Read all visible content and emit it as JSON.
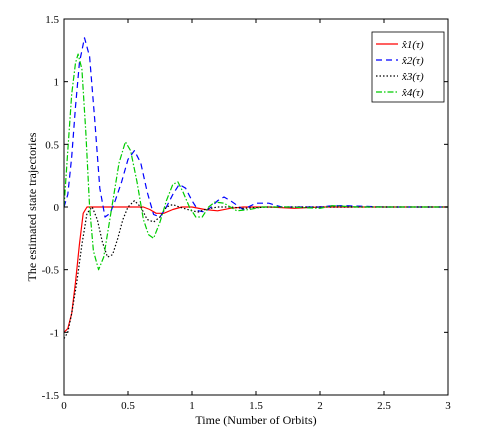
{
  "chart_data": {
    "type": "line",
    "title": "",
    "xlabel": "Time (Number of Orbits)",
    "ylabel": "The estimated state trajectories",
    "xlim": [
      0,
      3
    ],
    "ylim": [
      -1.5,
      1.5
    ],
    "xticks": [
      "0",
      "0.5",
      "1",
      "1.5",
      "2",
      "2.5",
      "3"
    ],
    "yticks": [
      "-1.5",
      "-1",
      "-0.5",
      "0",
      "0.5",
      "1",
      "1.5"
    ],
    "grid": false,
    "legend_position": "top-right",
    "series": [
      {
        "name": "x̂1(τ)",
        "color": "#ff0000",
        "dash": "solid",
        "points": [
          [
            0.0,
            -1.0
          ],
          [
            0.03,
            -0.97
          ],
          [
            0.06,
            -0.85
          ],
          [
            0.09,
            -0.6
          ],
          [
            0.12,
            -0.3
          ],
          [
            0.15,
            -0.05
          ],
          [
            0.18,
            0.0
          ],
          [
            0.25,
            0.0
          ],
          [
            0.35,
            0.0
          ],
          [
            0.45,
            0.0
          ],
          [
            0.55,
            0.0
          ],
          [
            0.62,
            0.0
          ],
          [
            0.67,
            -0.02
          ],
          [
            0.72,
            -0.05
          ],
          [
            0.78,
            -0.05
          ],
          [
            0.85,
            -0.02
          ],
          [
            0.92,
            0.0
          ],
          [
            1.0,
            0.0
          ],
          [
            1.1,
            -0.02
          ],
          [
            1.2,
            -0.03
          ],
          [
            1.3,
            -0.01
          ],
          [
            1.4,
            0.0
          ],
          [
            1.6,
            0.0
          ],
          [
            1.8,
            -0.01
          ],
          [
            2.0,
            0.0
          ],
          [
            2.3,
            0.0
          ],
          [
            2.6,
            0.0
          ],
          [
            3.0,
            0.0
          ]
        ]
      },
      {
        "name": "x̂2(τ)",
        "color": "#0000ff",
        "dash": "6,4",
        "points": [
          [
            0.0,
            0.0
          ],
          [
            0.03,
            0.1
          ],
          [
            0.06,
            0.4
          ],
          [
            0.09,
            0.8
          ],
          [
            0.12,
            1.15
          ],
          [
            0.16,
            1.35
          ],
          [
            0.2,
            1.2
          ],
          [
            0.24,
            0.7
          ],
          [
            0.28,
            0.15
          ],
          [
            0.32,
            -0.08
          ],
          [
            0.36,
            -0.05
          ],
          [
            0.4,
            0.05
          ],
          [
            0.45,
            0.2
          ],
          [
            0.5,
            0.38
          ],
          [
            0.55,
            0.45
          ],
          [
            0.6,
            0.35
          ],
          [
            0.65,
            0.12
          ],
          [
            0.7,
            -0.06
          ],
          [
            0.75,
            -0.08
          ],
          [
            0.8,
            0.0
          ],
          [
            0.85,
            0.1
          ],
          [
            0.9,
            0.18
          ],
          [
            0.95,
            0.15
          ],
          [
            1.0,
            0.05
          ],
          [
            1.05,
            -0.03
          ],
          [
            1.1,
            -0.04
          ],
          [
            1.15,
            0.0
          ],
          [
            1.2,
            0.05
          ],
          [
            1.25,
            0.08
          ],
          [
            1.3,
            0.05
          ],
          [
            1.4,
            -0.02
          ],
          [
            1.5,
            0.03
          ],
          [
            1.6,
            0.03
          ],
          [
            1.7,
            0.0
          ],
          [
            1.8,
            0.0
          ],
          [
            1.9,
            0.0
          ],
          [
            2.0,
            0.0
          ],
          [
            2.1,
            0.01
          ],
          [
            2.2,
            0.01
          ],
          [
            2.5,
            0.0
          ],
          [
            3.0,
            0.0
          ]
        ]
      },
      {
        "name": "x̂3(τ)",
        "color": "#000000",
        "dash": "1.5,2",
        "points": [
          [
            0.0,
            -1.05
          ],
          [
            0.03,
            -1.0
          ],
          [
            0.06,
            -0.85
          ],
          [
            0.1,
            -0.6
          ],
          [
            0.14,
            -0.3
          ],
          [
            0.18,
            -0.05
          ],
          [
            0.22,
            0.0
          ],
          [
            0.26,
            -0.1
          ],
          [
            0.3,
            -0.28
          ],
          [
            0.34,
            -0.4
          ],
          [
            0.38,
            -0.38
          ],
          [
            0.42,
            -0.25
          ],
          [
            0.46,
            -0.1
          ],
          [
            0.5,
            0.0
          ],
          [
            0.55,
            0.05
          ],
          [
            0.6,
            0.0
          ],
          [
            0.65,
            -0.1
          ],
          [
            0.7,
            -0.12
          ],
          [
            0.75,
            -0.08
          ],
          [
            0.8,
            0.0
          ],
          [
            0.85,
            0.02
          ],
          [
            0.9,
            0.0
          ],
          [
            1.0,
            -0.03
          ],
          [
            1.05,
            -0.04
          ],
          [
            1.1,
            -0.02
          ],
          [
            1.2,
            0.0
          ],
          [
            1.3,
            0.0
          ],
          [
            1.4,
            -0.01
          ],
          [
            1.6,
            0.0
          ],
          [
            2.0,
            0.0
          ],
          [
            2.5,
            0.0
          ],
          [
            3.0,
            0.0
          ]
        ]
      },
      {
        "name": "x̂4(τ)",
        "color": "#00cc00",
        "dash": "6,2,1.5,2",
        "points": [
          [
            0.0,
            0.0
          ],
          [
            0.03,
            0.45
          ],
          [
            0.06,
            0.9
          ],
          [
            0.09,
            1.15
          ],
          [
            0.11,
            1.22
          ],
          [
            0.14,
            1.1
          ],
          [
            0.17,
            0.6
          ],
          [
            0.2,
            0.0
          ],
          [
            0.23,
            -0.35
          ],
          [
            0.27,
            -0.5
          ],
          [
            0.31,
            -0.4
          ],
          [
            0.35,
            -0.15
          ],
          [
            0.39,
            0.1
          ],
          [
            0.43,
            0.35
          ],
          [
            0.48,
            0.52
          ],
          [
            0.52,
            0.45
          ],
          [
            0.57,
            0.2
          ],
          [
            0.62,
            -0.1
          ],
          [
            0.66,
            -0.22
          ],
          [
            0.7,
            -0.25
          ],
          [
            0.75,
            -0.12
          ],
          [
            0.8,
            0.05
          ],
          [
            0.85,
            0.18
          ],
          [
            0.89,
            0.2
          ],
          [
            0.93,
            0.12
          ],
          [
            0.98,
            0.0
          ],
          [
            1.03,
            -0.08
          ],
          [
            1.08,
            -0.08
          ],
          [
            1.13,
            0.0
          ],
          [
            1.18,
            0.04
          ],
          [
            1.25,
            0.03
          ],
          [
            1.3,
            0.0
          ],
          [
            1.35,
            -0.03
          ],
          [
            1.45,
            -0.02
          ],
          [
            1.55,
            0.0
          ],
          [
            1.65,
            0.0
          ],
          [
            1.75,
            0.0
          ],
          [
            2.0,
            -0.01
          ],
          [
            2.1,
            0.01
          ],
          [
            2.3,
            0.0
          ],
          [
            2.6,
            0.0
          ],
          [
            3.0,
            0.0
          ]
        ]
      }
    ]
  }
}
